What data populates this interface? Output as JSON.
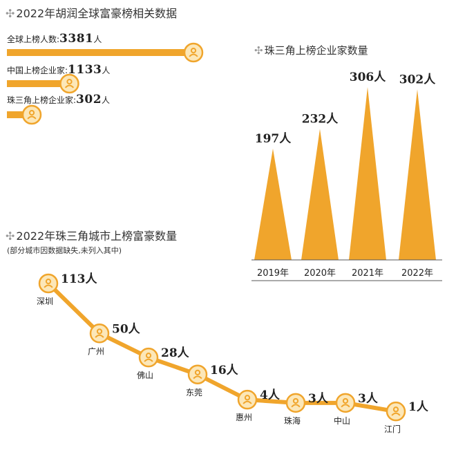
{
  "global": {
    "title": "2022年胡润全球富豪榜相关数据",
    "rows": [
      {
        "label_prefix": "全球上榜人数:",
        "value": "3381",
        "unit": "人",
        "count": 3381
      },
      {
        "label_prefix": "中国上榜企业家:",
        "value": "1133",
        "unit": "人",
        "count": 1133
      },
      {
        "label_prefix": "珠三角上榜企业家:",
        "value": "302",
        "unit": "人",
        "count": 302
      }
    ]
  },
  "colors": {
    "accent": "#F0A52C",
    "icon_fill": "#FCE7B8",
    "axis": "#555555"
  },
  "chart_data": [
    {
      "type": "area",
      "title": "珠三角上榜企业家数量",
      "categories": [
        "2019年",
        "2020年",
        "2021年",
        "2022年"
      ],
      "values": [
        197,
        232,
        306,
        302
      ],
      "data_labels": [
        "197人",
        "232人",
        "306人",
        "302人"
      ],
      "unit": "人",
      "ylim": [
        0,
        306
      ]
    },
    {
      "type": "line",
      "title": "2022年珠三角城市上榜富豪数量",
      "subtitle": "(部分城市因数据缺失,未列入其中)",
      "categories": [
        "深圳",
        "广州",
        "佛山",
        "东莞",
        "惠州",
        "珠海",
        "中山",
        "江门"
      ],
      "values": [
        113,
        50,
        28,
        16,
        4,
        3,
        3,
        1
      ],
      "data_labels": [
        "113人",
        "50人",
        "28人",
        "16人",
        "4人",
        "3人",
        "3人",
        "1人"
      ],
      "unit": "人"
    }
  ]
}
